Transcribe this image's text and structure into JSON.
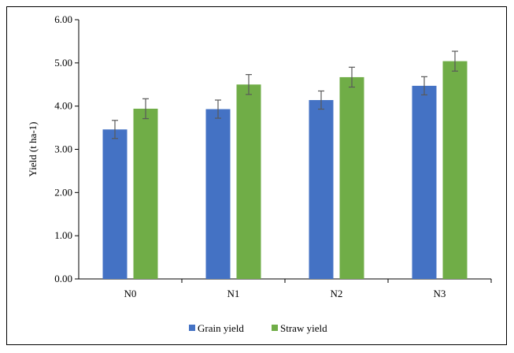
{
  "chart_data": {
    "type": "bar",
    "categories": [
      "N0",
      "N1",
      "N2",
      "N3"
    ],
    "series": [
      {
        "name": "Grain yield",
        "values": [
          3.46,
          3.93,
          4.14,
          4.47
        ],
        "errors": [
          0.21,
          0.21,
          0.21,
          0.21
        ],
        "color": "#4472C4"
      },
      {
        "name": "Straw yield",
        "values": [
          3.94,
          4.5,
          4.67,
          5.04
        ],
        "errors": [
          0.23,
          0.23,
          0.23,
          0.23
        ],
        "color": "#70AD47"
      }
    ],
    "ylabel": "Yield (t ha-1)",
    "xlabel": "",
    "ylim": [
      0,
      6
    ],
    "yticks": [
      "0.00",
      "1.00",
      "2.00",
      "3.00",
      "4.00",
      "5.00",
      "6.00"
    ],
    "grid": false,
    "legend": "bottom-center",
    "error_bar_color": "#595959"
  }
}
